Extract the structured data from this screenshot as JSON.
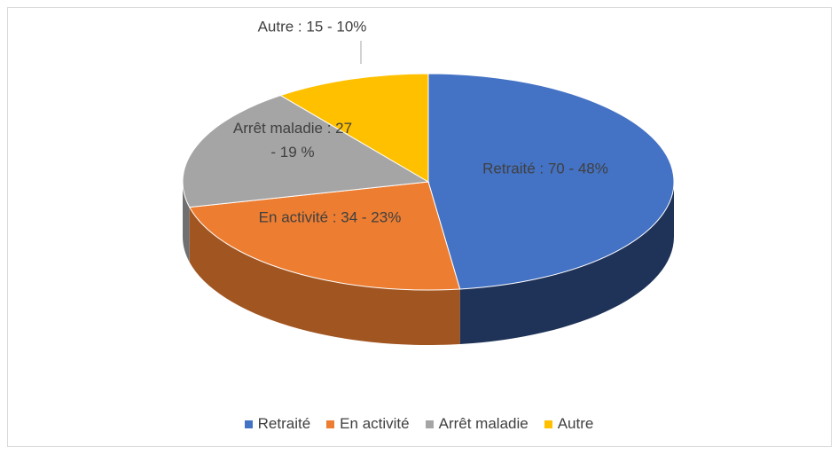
{
  "chart_data": {
    "type": "pie3d",
    "categories": [
      "Retraité",
      "En activité",
      "Arrêt maladie",
      "Autre"
    ],
    "values": [
      70,
      34,
      27,
      15
    ],
    "value_labels": [
      "Retraité : 70 - 48%",
      "En activité : 34 - 23%",
      "Arrêt maladie : 27 - 19 %",
      "Autre : 15 - 10%"
    ],
    "colors": [
      "#4472c4",
      "#ed7d31",
      "#a5a5a5",
      "#ffc000"
    ],
    "legend": "bottom"
  }
}
